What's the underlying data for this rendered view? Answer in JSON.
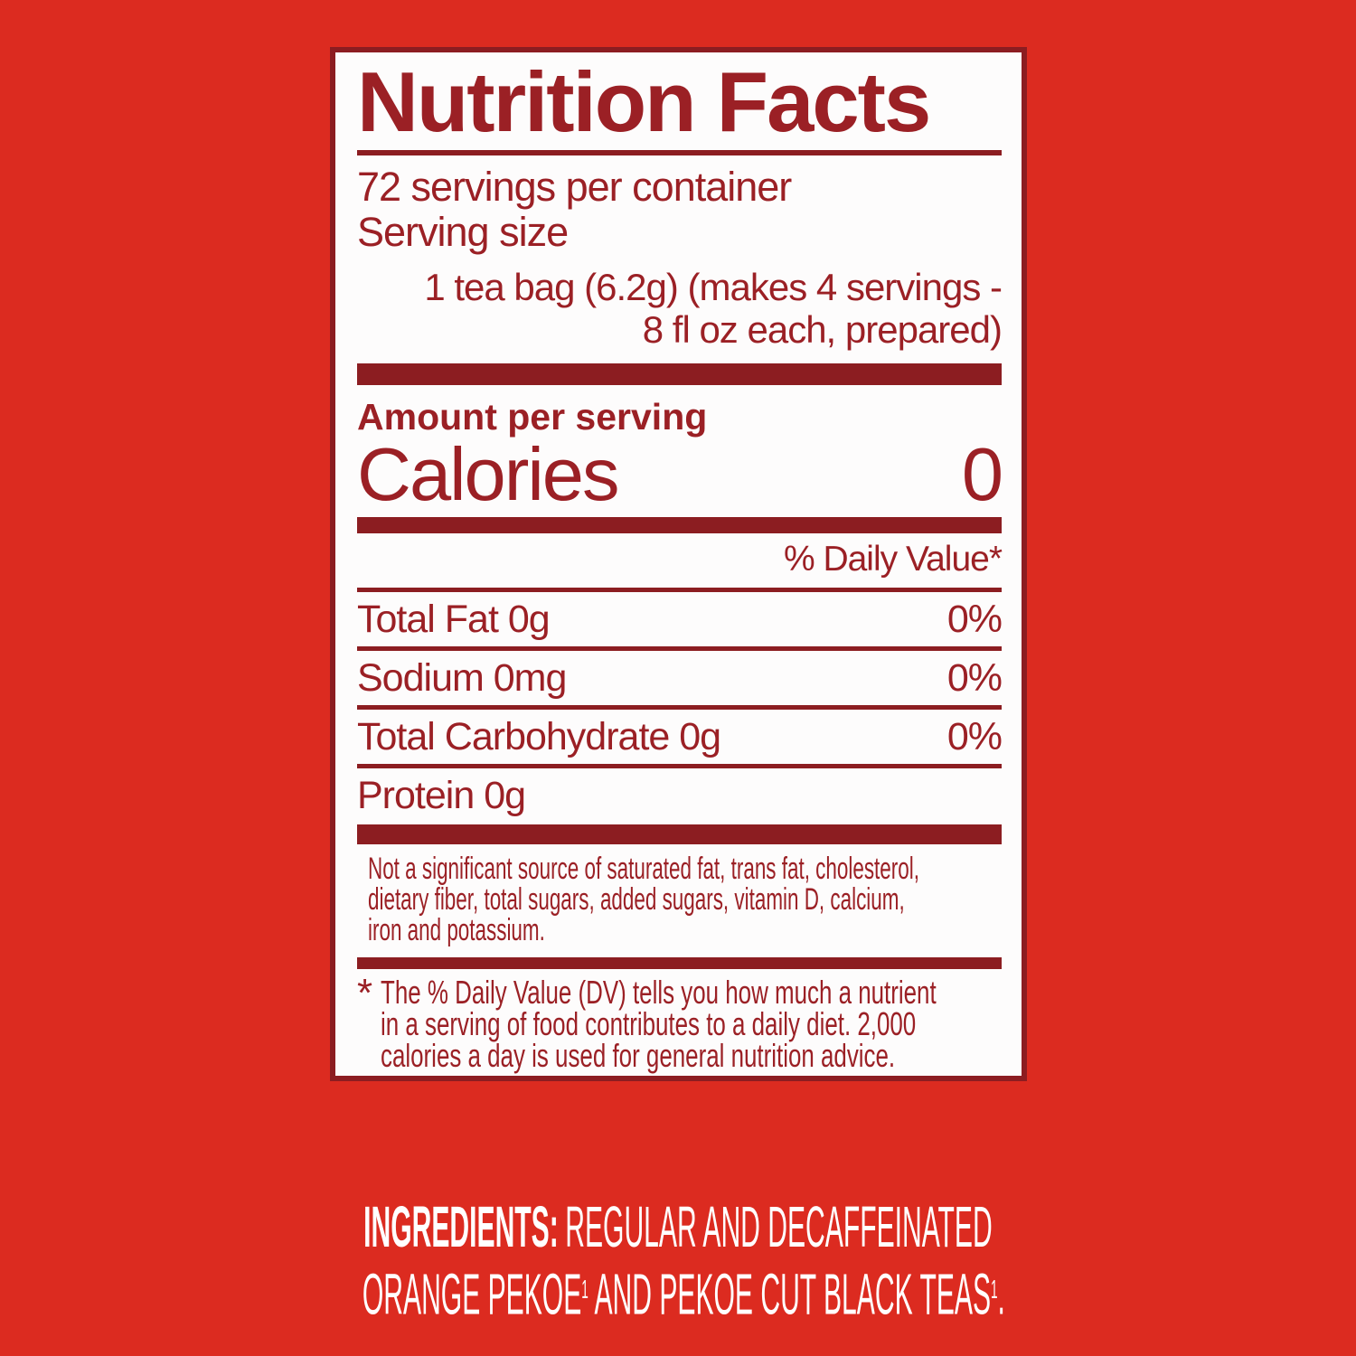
{
  "page": {
    "background_color": "#dc2b20"
  },
  "colors": {
    "accent_dark_red": "#8c1d21",
    "label_text_red": "#9b2025",
    "panel_background": "#fdfcfc",
    "ingredients_text": "#ffffff"
  },
  "label": {
    "title": "Nutrition Facts",
    "servings_per_container": "72 servings per container",
    "serving_size_label": "Serving size",
    "serving_size_value_lines": [
      "1 tea bag (6.2g) (makes 4 servings -",
      "8 fl oz each, prepared)"
    ],
    "amount_per_serving": "Amount per serving",
    "calories_label": "Calories",
    "calories_value": "0",
    "daily_value_header": "% Daily Value*",
    "nutrient_rows": [
      {
        "name": "Total Fat 0g",
        "dv": "0%"
      },
      {
        "name": "Sodium 0mg",
        "dv": "0%"
      },
      {
        "name": "Total Carbohydrate 0g",
        "dv": "0%"
      },
      {
        "name": "Protein 0g",
        "dv": ""
      }
    ],
    "not_significant_lines": [
      "Not a significant source of saturated fat, trans fat, cholesterol,",
      "dietary fiber, total sugars, added sugars, vitamin D, calcium,",
      "iron and potassium."
    ],
    "footnote_symbol": "*",
    "footnote_lines": [
      "The % Daily Value (DV) tells you how much a nutrient",
      "in a serving of food contributes to a daily diet. 2,000",
      "calories a day is used for general nutrition advice."
    ]
  },
  "ingredients": {
    "heading": "INGREDIENTS:",
    "line1_text": "REGULAR AND DECAFFEINATED",
    "line2": [
      {
        "t": "ORANGE PEKOE"
      },
      {
        "t": "1"
      },
      {
        "t": " AND PEKOE CUT BLACK TEAS"
      },
      {
        "t": "1"
      },
      {
        "t": "."
      }
    ]
  }
}
